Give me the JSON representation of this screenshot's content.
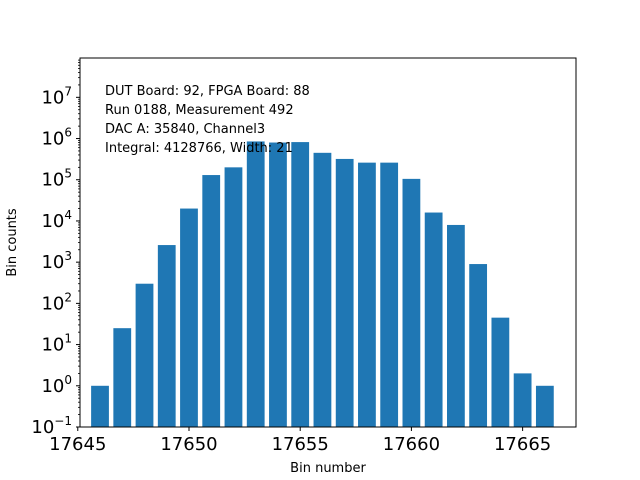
{
  "chart_data": {
    "type": "bar",
    "x": [
      17646,
      17647,
      17648,
      17649,
      17650,
      17651,
      17652,
      17653,
      17654,
      17655,
      17656,
      17657,
      17658,
      17659,
      17660,
      17661,
      17662,
      17663,
      17664,
      17665,
      17666
    ],
    "values": [
      1,
      25,
      300,
      2600,
      20000,
      130000,
      200000,
      850000,
      800000,
      820000,
      450000,
      320000,
      260000,
      260000,
      105000,
      16000,
      8000,
      900,
      45,
      2,
      1
    ],
    "xlabel": "Bin number",
    "ylabel": "Bin counts",
    "xlim": [
      17645.1,
      17667.4
    ],
    "ylim": [
      0.1,
      90000000
    ],
    "yscale": "log",
    "xticks": [
      {
        "value": 17645,
        "label": "17645"
      },
      {
        "value": 17650,
        "label": "17650"
      },
      {
        "value": 17655,
        "label": "17655"
      },
      {
        "value": 17660,
        "label": "17660"
      },
      {
        "value": 17665,
        "label": "17665"
      }
    ],
    "yticks": [
      {
        "value": 0.1,
        "base": "10",
        "exp": "−1"
      },
      {
        "value": 1,
        "base": "10",
        "exp": "0"
      },
      {
        "value": 10,
        "base": "10",
        "exp": "1"
      },
      {
        "value": 100,
        "base": "10",
        "exp": "2"
      },
      {
        "value": 1000,
        "base": "10",
        "exp": "3"
      },
      {
        "value": 10000,
        "base": "10",
        "exp": "4"
      },
      {
        "value": 100000,
        "base": "10",
        "exp": "5"
      },
      {
        "value": 1000000,
        "base": "10",
        "exp": "6"
      },
      {
        "value": 10000000,
        "base": "10",
        "exp": "7"
      }
    ],
    "annotation": [
      "DUT Board: 92, FPGA Board: 88",
      "Run 0188, Measurement 492",
      "DAC A: 35840, Channel3",
      "Integral: 4128766, Width: 21"
    ],
    "bar_color": "#1f77b4",
    "grid": false
  }
}
